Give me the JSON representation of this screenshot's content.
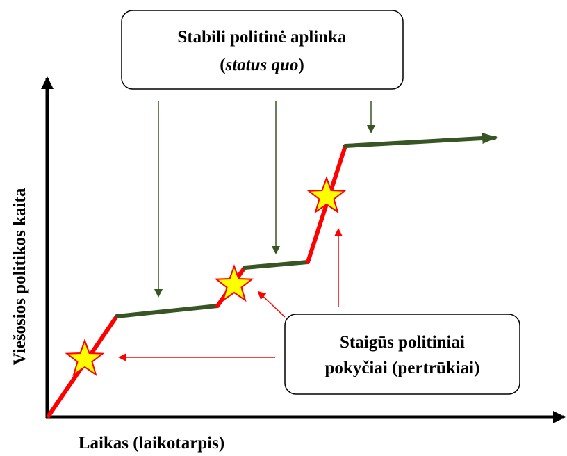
{
  "top_box": {
    "line1": "Stabili politinė aplinka",
    "line2_open": "(",
    "line2_italic": "status quo",
    "line2_close": ")"
  },
  "bottom_box": {
    "line1": "Staigūs politiniai",
    "line2": "pokyčiai (pertrūkiai)"
  },
  "y_axis_label": "Viešosios politikos kaita",
  "x_axis_label": "Laikas (laikotarpis)"
}
